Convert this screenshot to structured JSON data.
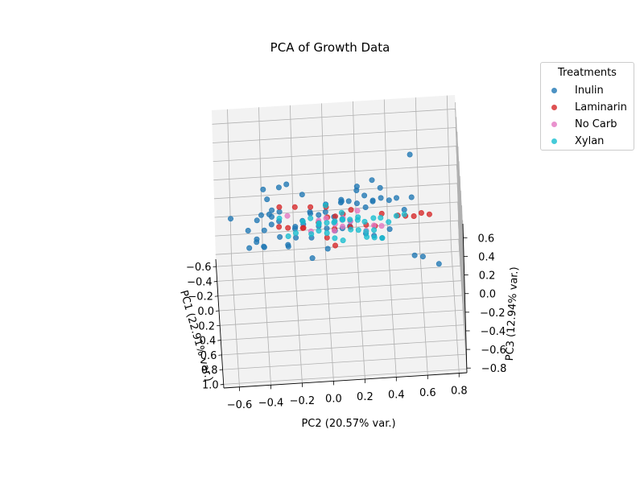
{
  "chart_data": {
    "type": "scatter",
    "title": "PCA of Growth Data",
    "xlabel": "PC1 (22.91% var.)",
    "ylabel": "PC2 (20.57% var.)",
    "zlabel": "PC3 (12.94% var.)",
    "pc1_ticks": [
      "−0.6",
      "−0.4",
      "−0.2",
      "0.0",
      "0.2",
      "0.4",
      "0.6",
      "0.8",
      "1.0"
    ],
    "pc2_ticks": [
      "−0.6",
      "−0.4",
      "−0.2",
      "0.0",
      "0.2",
      "0.4",
      "0.6",
      "0.8"
    ],
    "pc3_ticks": [
      "−0.8",
      "−0.6",
      "−0.4",
      "−0.2",
      "0.0",
      "0.2",
      "0.4",
      "0.6"
    ],
    "xlim": [
      -0.7,
      1.05
    ],
    "ylim": [
      -0.7,
      0.85
    ],
    "zlim": [
      -0.85,
      0.75
    ],
    "grid": true,
    "legend": {
      "title": "Treatments",
      "placement": "outside-top-right"
    },
    "series": [
      {
        "name": "Inulin",
        "color": "#1f77b4",
        "points": [
          [
            0.62,
            -0.62,
            0.62
          ],
          [
            0.45,
            -0.45,
            0.45
          ],
          [
            0.38,
            -0.37,
            0.45
          ],
          [
            0.3,
            -0.38,
            0.55
          ],
          [
            0.32,
            -0.42,
            0.4
          ],
          [
            0.15,
            -0.3,
            0.55
          ],
          [
            0.1,
            -0.4,
            0.5
          ],
          [
            0.05,
            -0.25,
            0.5
          ],
          [
            0.2,
            -0.35,
            0.35
          ],
          [
            -0.05,
            -0.15,
            0.3
          ],
          [
            0.1,
            -0.3,
            0.25
          ],
          [
            -0.2,
            -0.4,
            -0.35
          ],
          [
            0.0,
            -0.2,
            0.0
          ],
          [
            -0.1,
            -0.1,
            0.05
          ],
          [
            -0.15,
            0.0,
            0.1
          ],
          [
            -0.2,
            0.1,
            0.1
          ],
          [
            -0.25,
            0.2,
            0.15
          ],
          [
            -0.3,
            0.25,
            0.05
          ],
          [
            -0.1,
            0.05,
            0.0
          ],
          [
            0.0,
            0.1,
            -0.05
          ],
          [
            -0.05,
            -0.05,
            -0.05
          ],
          [
            0.05,
            0.0,
            0.0
          ],
          [
            0.1,
            -0.1,
            -0.05
          ],
          [
            0.15,
            -0.2,
            0.0
          ],
          [
            0.2,
            -0.25,
            -0.05
          ],
          [
            -0.1,
            -0.2,
            -0.1
          ],
          [
            -0.15,
            -0.3,
            -0.05
          ],
          [
            -0.05,
            -0.35,
            0.0
          ],
          [
            0.0,
            -0.3,
            -0.1
          ],
          [
            0.05,
            -0.25,
            -0.15
          ],
          [
            -0.2,
            -0.15,
            -0.1
          ],
          [
            -0.25,
            -0.1,
            -0.05
          ],
          [
            -0.3,
            0.0,
            -0.1
          ],
          [
            -0.35,
            0.1,
            -0.05
          ],
          [
            -0.3,
            0.15,
            0.0
          ],
          [
            -0.2,
            0.2,
            0.05
          ],
          [
            -0.15,
            0.3,
            0.1
          ],
          [
            0.1,
            0.4,
            0.3
          ],
          [
            0.0,
            0.35,
            0.25
          ],
          [
            -0.05,
            0.45,
            0.2
          ],
          [
            0.3,
            0.55,
            -0.15
          ],
          [
            -0.2,
            0.5,
            -0.05
          ],
          [
            -0.3,
            0.55,
            0.0
          ],
          [
            0.45,
            0.6,
            -0.05
          ],
          [
            0.5,
            0.7,
            -0.1
          ],
          [
            -0.5,
            0.55,
            0.3
          ],
          [
            -0.05,
            0.2,
            0.35
          ],
          [
            0.05,
            0.25,
            0.2
          ],
          [
            0.1,
            0.15,
            0.1
          ],
          [
            0.15,
            0.05,
            0.05
          ],
          [
            0.2,
            0.0,
            -0.1
          ],
          [
            0.25,
            -0.1,
            -0.15
          ],
          [
            -0.1,
            0.3,
            0.15
          ],
          [
            -0.2,
            0.35,
            0.2
          ],
          [
            -0.25,
            0.3,
            0.25
          ],
          [
            0.0,
            -0.4,
            -0.2
          ],
          [
            0.05,
            -0.45,
            -0.1
          ],
          [
            -0.05,
            -0.5,
            -0.05
          ],
          [
            0.1,
            -0.35,
            0.2
          ],
          [
            0.15,
            -0.4,
            0.1
          ],
          [
            0.2,
            -0.45,
            0.05
          ],
          [
            0.25,
            -0.5,
            0.0
          ],
          [
            -0.15,
            0.15,
            -0.15
          ],
          [
            -0.1,
            0.25,
            -0.2
          ],
          [
            0.0,
            0.3,
            -0.15
          ],
          [
            0.1,
            0.35,
            -0.1
          ],
          [
            0.05,
            0.4,
            -0.05
          ],
          [
            -0.05,
            0.1,
            0.2
          ],
          [
            0.05,
            -0.05,
            0.15
          ],
          [
            0.1,
            -0.15,
            0.1
          ]
        ]
      },
      {
        "name": "Laminarin",
        "color": "#d62728",
        "points": [
          [
            0.45,
            0.15,
            0.5
          ],
          [
            0.4,
            0.05,
            0.4
          ],
          [
            0.38,
            0.0,
            0.38
          ],
          [
            0.35,
            0.1,
            0.38
          ],
          [
            0.5,
            0.3,
            0.35
          ],
          [
            0.4,
            0.55,
            0.35
          ],
          [
            0.35,
            0.65,
            0.32
          ],
          [
            0.3,
            0.6,
            0.3
          ],
          [
            0.25,
            0.45,
            0.25
          ],
          [
            0.2,
            0.5,
            0.2
          ],
          [
            0.15,
            0.35,
            0.2
          ],
          [
            0.1,
            -0.3,
            0.3
          ],
          [
            0.05,
            -0.2,
            0.25
          ],
          [
            0.0,
            -0.1,
            0.2
          ],
          [
            -0.05,
            0.0,
            0.15
          ],
          [
            0.1,
            0.25,
            0.05
          ],
          [
            0.05,
            0.15,
            0.0
          ],
          [
            0.0,
            0.05,
            -0.05
          ],
          [
            -0.1,
            -0.15,
            -0.1
          ],
          [
            -0.2,
            -0.3,
            -0.15
          ],
          [
            -0.1,
            -0.05,
            -0.05
          ],
          [
            0.15,
            -0.15,
            0.1
          ],
          [
            0.2,
            -0.25,
            0.15
          ],
          [
            0.1,
            0.05,
            -0.15
          ],
          [
            0.05,
            0.0,
            -0.1
          ]
        ]
      },
      {
        "name": "No Carb",
        "color": "#e377c2",
        "points": [
          [
            0.3,
            0.1,
            0.3
          ],
          [
            0.25,
            0.05,
            0.2
          ],
          [
            0.1,
            -0.25,
            0.2
          ],
          [
            0.0,
            -0.05,
            0.05
          ],
          [
            0.05,
            0.25,
            -0.05
          ],
          [
            -0.05,
            0.1,
            0.0
          ],
          [
            -0.1,
            0.2,
            0.05
          ],
          [
            0.0,
            0.35,
            -0.05
          ],
          [
            0.1,
            0.15,
            0.1
          ],
          [
            0.15,
            0.05,
            0.15
          ],
          [
            -0.15,
            0.0,
            -0.05
          ],
          [
            -0.05,
            -0.1,
            -0.1
          ],
          [
            0.05,
            0.3,
            0.0
          ],
          [
            0.1,
            0.1,
            0.05
          ],
          [
            -0.1,
            0.05,
            -0.15
          ]
        ]
      },
      {
        "name": "Xylan",
        "color": "#17becf",
        "points": [
          [
            0.2,
            0.1,
            0.2
          ],
          [
            0.15,
            0.05,
            0.15
          ],
          [
            0.1,
            0.0,
            0.1
          ],
          [
            0.05,
            -0.05,
            0.05
          ],
          [
            0.0,
            0.1,
            0.05
          ],
          [
            -0.05,
            0.15,
            0.0
          ],
          [
            0.1,
            0.2,
            0.0
          ],
          [
            0.05,
            0.3,
            -0.05
          ],
          [
            0.0,
            0.25,
            -0.1
          ],
          [
            -0.1,
            0.2,
            -0.05
          ],
          [
            -0.15,
            0.1,
            0.0
          ],
          [
            -0.2,
            0.0,
            0.05
          ],
          [
            -0.1,
            -0.1,
            0.0
          ],
          [
            0.0,
            -0.15,
            0.05
          ],
          [
            0.1,
            -0.05,
            0.1
          ],
          [
            0.15,
            0.15,
            0.05
          ],
          [
            0.2,
            0.25,
            0.0
          ],
          [
            -0.3,
            0.35,
            -0.2
          ],
          [
            -0.3,
            0.4,
            -0.25
          ],
          [
            -0.45,
            0.25,
            -0.35
          ],
          [
            -0.2,
            0.5,
            -0.1
          ],
          [
            -0.25,
            0.45,
            -0.15
          ],
          [
            0.25,
            -0.25,
            0.1
          ],
          [
            0.15,
            -0.2,
            0.05
          ],
          [
            0.05,
            0.0,
            -0.05
          ],
          [
            0.1,
            0.1,
            -0.1
          ],
          [
            0.0,
            0.05,
            -0.15
          ],
          [
            -0.05,
            -0.05,
            -0.1
          ],
          [
            0.05,
            -0.1,
            -0.05
          ],
          [
            -0.15,
            0.05,
            -0.1
          ],
          [
            0.1,
            0.35,
            -0.1
          ],
          [
            0.15,
            0.3,
            -0.05
          ],
          [
            -0.05,
            0.3,
            0.0
          ],
          [
            0.05,
            0.2,
            0.1
          ],
          [
            0.0,
            -0.3,
            0.1
          ]
        ]
      }
    ]
  }
}
